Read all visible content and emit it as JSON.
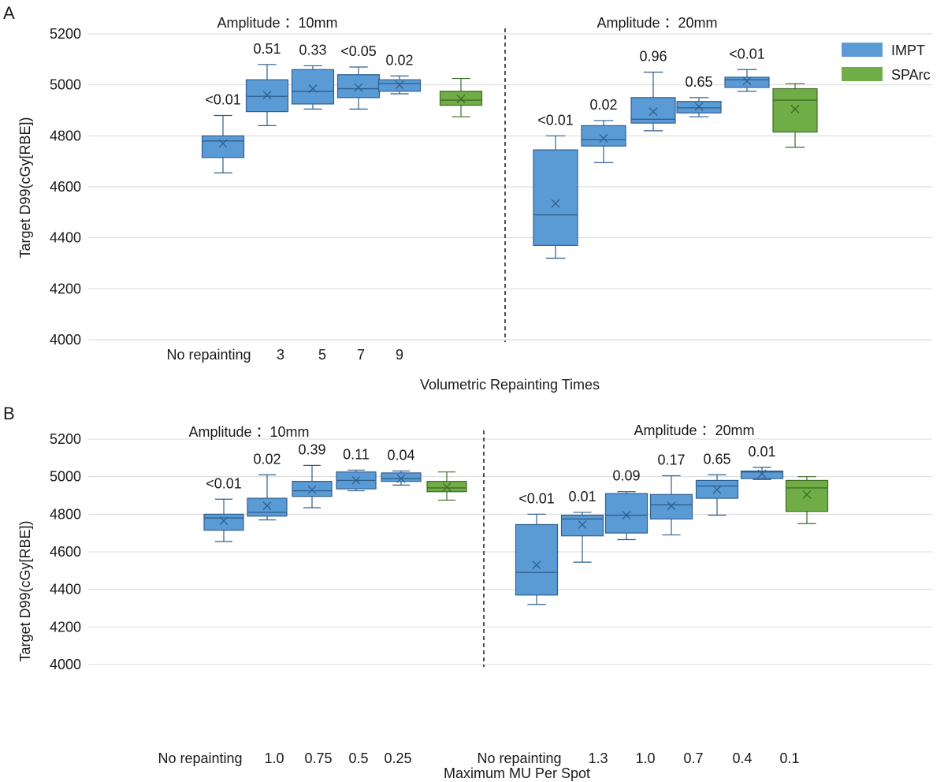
{
  "colors": {
    "impt_fill": "#5b9bd5",
    "impt_stroke": "#2f5f8f",
    "sparc_fill": "#70ad47",
    "sparc_stroke": "#3f6b26",
    "grid": "#d9d9d9"
  },
  "legend": [
    {
      "label": "IMPT",
      "color": "#5b9bd5"
    },
    {
      "label": "SPArc",
      "color": "#70ad47"
    }
  ],
  "chart_data": [
    {
      "type": "box",
      "panel_label": "A",
      "title": "",
      "ylabel": "Target D99(cGy[RBE])",
      "xlabel": "Volumetric Repainting Times",
      "ylim": [
        4000,
        5200
      ],
      "yticks": [
        "4000",
        "4200",
        "4400",
        "4600",
        "4800",
        "5000",
        "5200"
      ],
      "groups": [
        {
          "label": "Amplitude ：10mm",
          "categories": [
            "No repainting",
            "3",
            "5",
            "7",
            "9"
          ],
          "boxes": [
            {
              "series": "IMPT",
              "min": 4655,
              "q1": 4715,
              "median": 4780,
              "q3": 4800,
              "max": 4880,
              "mean": 4770,
              "p": "<0.01"
            },
            {
              "series": "IMPT",
              "min": 4840,
              "q1": 4895,
              "median": 4955,
              "q3": 5020,
              "max": 5080,
              "mean": 4960,
              "p": "0.51"
            },
            {
              "series": "IMPT",
              "min": 4905,
              "q1": 4925,
              "median": 4975,
              "q3": 5060,
              "max": 5075,
              "mean": 4985,
              "p": "0.33"
            },
            {
              "series": "IMPT",
              "min": 4905,
              "q1": 4950,
              "median": 4985,
              "q3": 5040,
              "max": 5070,
              "mean": 4990,
              "p": "<0.05"
            },
            {
              "series": "IMPT",
              "min": 4965,
              "q1": 4975,
              "median": 5005,
              "q3": 5020,
              "max": 5035,
              "mean": 5000,
              "p": "0.02"
            },
            {
              "series": "SPArc",
              "min": 4875,
              "q1": 4920,
              "median": 4940,
              "q3": 4975,
              "max": 5025,
              "mean": 4945,
              "p": ""
            }
          ]
        },
        {
          "label": "Amplitude ：20mm",
          "categories": [],
          "boxes": [
            {
              "series": "IMPT",
              "min": 4320,
              "q1": 4370,
              "median": 4490,
              "q3": 4745,
              "max": 4800,
              "mean": 4535,
              "p": "<0.01"
            },
            {
              "series": "IMPT",
              "min": 4695,
              "q1": 4760,
              "median": 4785,
              "q3": 4840,
              "max": 4860,
              "mean": 4790,
              "p": "0.02"
            },
            {
              "series": "IMPT",
              "min": 4820,
              "q1": 4850,
              "median": 4865,
              "q3": 4950,
              "max": 5050,
              "mean": 4895,
              "p": "0.96"
            },
            {
              "series": "IMPT",
              "min": 4875,
              "q1": 4890,
              "median": 4910,
              "q3": 4935,
              "max": 4950,
              "mean": 4915,
              "p": "0.65"
            },
            {
              "series": "IMPT",
              "min": 4975,
              "q1": 4990,
              "median": 5020,
              "q3": 5030,
              "max": 5060,
              "mean": 5015,
              "p": "<0.01"
            },
            {
              "series": "SPArc",
              "min": 4755,
              "q1": 4815,
              "median": 4940,
              "q3": 4985,
              "max": 5005,
              "mean": 4905,
              "p": ""
            }
          ]
        }
      ]
    },
    {
      "type": "box",
      "panel_label": "B",
      "title": "",
      "ylabel": "Target D99(cGy[RBE])",
      "xlabel": "Maximum MU Per Spot",
      "ylim": [
        4000,
        5200
      ],
      "yticks": [
        "4000",
        "4200",
        "4400",
        "4600",
        "4800",
        "5000",
        "5200"
      ],
      "groups": [
        {
          "label": "Amplitude ：10mm",
          "categories": [
            "No repainting",
            "1.0",
            "0.75",
            "0.5",
            "0.25"
          ],
          "boxes": [
            {
              "series": "IMPT",
              "min": 4655,
              "q1": 4715,
              "median": 4780,
              "q3": 4800,
              "max": 4880,
              "mean": 4765,
              "p": "<0.01"
            },
            {
              "series": "IMPT",
              "min": 4770,
              "q1": 4790,
              "median": 4810,
              "q3": 4885,
              "max": 5010,
              "mean": 4845,
              "p": "0.02"
            },
            {
              "series": "IMPT",
              "min": 4835,
              "q1": 4895,
              "median": 4925,
              "q3": 4975,
              "max": 5060,
              "mean": 4930,
              "p": "0.39"
            },
            {
              "series": "IMPT",
              "min": 4925,
              "q1": 4935,
              "median": 4980,
              "q3": 5025,
              "max": 5035,
              "mean": 4980,
              "p": "0.11"
            },
            {
              "series": "IMPT",
              "min": 4955,
              "q1": 4975,
              "median": 4990,
              "q3": 5020,
              "max": 5030,
              "mean": 4990,
              "p": "0.04"
            },
            {
              "series": "SPArc",
              "min": 4875,
              "q1": 4920,
              "median": 4940,
              "q3": 4975,
              "max": 5025,
              "mean": 4945,
              "p": ""
            }
          ]
        },
        {
          "label": "Amplitude ：20mm",
          "categories": [
            "No repainting",
            "1.3",
            "1.0",
            "0.7",
            "0.4",
            "0.1"
          ],
          "boxes": [
            {
              "series": "IMPT",
              "min": 4320,
              "q1": 4370,
              "median": 4490,
              "q3": 4745,
              "max": 4800,
              "mean": 4530,
              "p": "<0.01"
            },
            {
              "series": "IMPT",
              "min": 4545,
              "q1": 4685,
              "median": 4775,
              "q3": 4795,
              "max": 4810,
              "mean": 4745,
              "p": "0.01"
            },
            {
              "series": "IMPT",
              "min": 4665,
              "q1": 4700,
              "median": 4795,
              "q3": 4910,
              "max": 4920,
              "mean": 4795,
              "p": "0.09"
            },
            {
              "series": "IMPT",
              "min": 4690,
              "q1": 4775,
              "median": 4850,
              "q3": 4905,
              "max": 5005,
              "mean": 4845,
              "p": "0.17"
            },
            {
              "series": "IMPT",
              "min": 4795,
              "q1": 4885,
              "median": 4950,
              "q3": 4980,
              "max": 5010,
              "mean": 4930,
              "p": "0.65"
            },
            {
              "series": "IMPT",
              "min": 4985,
              "q1": 4990,
              "median": 5025,
              "q3": 5030,
              "max": 5050,
              "mean": 5015,
              "p": "0.01"
            },
            {
              "series": "SPArc",
              "min": 4750,
              "q1": 4815,
              "median": 4940,
              "q3": 4980,
              "max": 5000,
              "mean": 4905,
              "p": ""
            }
          ]
        }
      ]
    }
  ]
}
